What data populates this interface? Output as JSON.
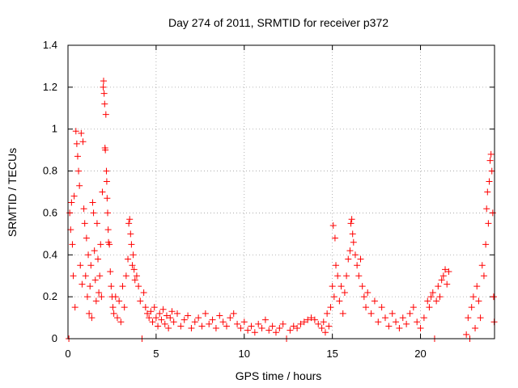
{
  "chart_data": {
    "type": "scatter",
    "title": "Day 274 of 2011, SRMTID for receiver p372",
    "xlabel": "GPS time / hours",
    "ylabel": "SRMTID / TECUs",
    "xlim": [
      0,
      24.2
    ],
    "ylim": [
      0,
      1.4
    ],
    "x_ticks": [
      0,
      5,
      10,
      15,
      20
    ],
    "x_tick_labels": [
      "0",
      "5",
      "10",
      "15",
      "20"
    ],
    "y_ticks": [
      0,
      0.2,
      0.4,
      0.6,
      0.8,
      1,
      1.2,
      1.4
    ],
    "y_tick_labels": [
      "0",
      "0.2",
      "0.4",
      "0.6",
      "0.8",
      "1",
      "1.2",
      "1.4"
    ],
    "grid": true,
    "marker": "+",
    "color": "#ff0000",
    "series": [
      {
        "name": "SRMTID",
        "points": [
          [
            0.05,
            0.0
          ],
          [
            0.1,
            0.6
          ],
          [
            0.15,
            0.52
          ],
          [
            0.2,
            0.65
          ],
          [
            0.25,
            0.45
          ],
          [
            0.3,
            0.3
          ],
          [
            0.35,
            0.68
          ],
          [
            0.4,
            0.15
          ],
          [
            0.45,
            0.99
          ],
          [
            0.5,
            0.93
          ],
          [
            0.55,
            0.87
          ],
          [
            0.6,
            0.8
          ],
          [
            0.65,
            0.73
          ],
          [
            0.7,
            0.35
          ],
          [
            0.75,
            0.98
          ],
          [
            0.8,
            0.26
          ],
          [
            0.85,
            0.94
          ],
          [
            0.9,
            0.62
          ],
          [
            0.95,
            0.55
          ],
          [
            1.0,
            0.3
          ],
          [
            1.05,
            0.48
          ],
          [
            1.1,
            0.2
          ],
          [
            1.15,
            0.4
          ],
          [
            1.2,
            0.12
          ],
          [
            1.25,
            0.25
          ],
          [
            1.3,
            0.35
          ],
          [
            1.35,
            0.1
          ],
          [
            1.4,
            0.65
          ],
          [
            1.45,
            0.6
          ],
          [
            1.5,
            0.42
          ],
          [
            1.55,
            0.28
          ],
          [
            1.6,
            0.18
          ],
          [
            1.65,
            0.55
          ],
          [
            1.7,
            0.38
          ],
          [
            1.75,
            0.22
          ],
          [
            1.8,
            0.3
          ],
          [
            1.85,
            0.45
          ],
          [
            1.9,
            0.2
          ],
          [
            1.95,
            0.7
          ],
          [
            2.0,
            1.2
          ],
          [
            2.02,
            1.23
          ],
          [
            2.05,
            1.17
          ],
          [
            2.08,
            1.12
          ],
          [
            2.1,
            0.91
          ],
          [
            2.12,
            0.9
          ],
          [
            2.15,
            1.07
          ],
          [
            2.18,
            0.8
          ],
          [
            2.2,
            0.75
          ],
          [
            2.22,
            0.67
          ],
          [
            2.25,
            0.6
          ],
          [
            2.28,
            0.52
          ],
          [
            2.3,
            0.46
          ],
          [
            2.35,
            0.45
          ],
          [
            2.4,
            0.32
          ],
          [
            2.45,
            0.25
          ],
          [
            2.5,
            0.2
          ],
          [
            2.55,
            0.15
          ],
          [
            2.6,
            0.12
          ],
          [
            2.7,
            0.2
          ],
          [
            2.8,
            0.1
          ],
          [
            2.9,
            0.18
          ],
          [
            3.0,
            0.08
          ],
          [
            3.1,
            0.25
          ],
          [
            3.2,
            0.15
          ],
          [
            3.3,
            0.3
          ],
          [
            3.4,
            0.38
          ],
          [
            3.45,
            0.55
          ],
          [
            3.5,
            0.57
          ],
          [
            3.55,
            0.5
          ],
          [
            3.6,
            0.45
          ],
          [
            3.65,
            0.35
          ],
          [
            3.7,
            0.4
          ],
          [
            3.75,
            0.33
          ],
          [
            3.8,
            0.28
          ],
          [
            3.9,
            0.3
          ],
          [
            4.0,
            0.25
          ],
          [
            4.1,
            0.18
          ],
          [
            4.2,
            0.0
          ],
          [
            4.3,
            0.22
          ],
          [
            4.4,
            0.15
          ],
          [
            4.5,
            0.12
          ],
          [
            4.6,
            0.1
          ],
          [
            4.7,
            0.13
          ],
          [
            4.8,
            0.08
          ],
          [
            4.9,
            0.15
          ],
          [
            5.0,
            0.1
          ],
          [
            5.1,
            0.06
          ],
          [
            5.2,
            0.12
          ],
          [
            5.3,
            0.09
          ],
          [
            5.4,
            0.14
          ],
          [
            5.5,
            0.07
          ],
          [
            5.6,
            0.11
          ],
          [
            5.7,
            0.05
          ],
          [
            5.8,
            0.1
          ],
          [
            5.9,
            0.13
          ],
          [
            6.0,
            0.08
          ],
          [
            6.2,
            0.12
          ],
          [
            6.4,
            0.06
          ],
          [
            6.6,
            0.09
          ],
          [
            6.8,
            0.11
          ],
          [
            7.0,
            0.05
          ],
          [
            7.2,
            0.08
          ],
          [
            7.4,
            0.1
          ],
          [
            7.6,
            0.06
          ],
          [
            7.8,
            0.12
          ],
          [
            8.0,
            0.07
          ],
          [
            8.2,
            0.09
          ],
          [
            8.4,
            0.05
          ],
          [
            8.6,
            0.11
          ],
          [
            8.8,
            0.08
          ],
          [
            9.0,
            0.06
          ],
          [
            9.2,
            0.1
          ],
          [
            9.4,
            0.12
          ],
          [
            9.6,
            0.07
          ],
          [
            9.8,
            0.05
          ],
          [
            10.0,
            0.08
          ],
          [
            10.2,
            0.04
          ],
          [
            10.4,
            0.06
          ],
          [
            10.6,
            0.03
          ],
          [
            10.8,
            0.07
          ],
          [
            11.0,
            0.05
          ],
          [
            11.2,
            0.09
          ],
          [
            11.4,
            0.04
          ],
          [
            11.6,
            0.06
          ],
          [
            11.8,
            0.03
          ],
          [
            12.0,
            0.05
          ],
          [
            12.2,
            0.07
          ],
          [
            12.4,
            0.0
          ],
          [
            12.6,
            0.04
          ],
          [
            12.8,
            0.06
          ],
          [
            13.0,
            0.05
          ],
          [
            13.2,
            0.07
          ],
          [
            13.4,
            0.08
          ],
          [
            13.6,
            0.09
          ],
          [
            13.8,
            0.1
          ],
          [
            14.0,
            0.09
          ],
          [
            14.2,
            0.07
          ],
          [
            14.4,
            0.05
          ],
          [
            14.5,
            0.08
          ],
          [
            14.6,
            0.03
          ],
          [
            14.7,
            0.12
          ],
          [
            14.8,
            0.06
          ],
          [
            14.9,
            0.15
          ],
          [
            15.0,
            0.25
          ],
          [
            15.05,
            0.54
          ],
          [
            15.1,
            0.2
          ],
          [
            15.15,
            0.48
          ],
          [
            15.2,
            0.35
          ],
          [
            15.3,
            0.3
          ],
          [
            15.4,
            0.18
          ],
          [
            15.5,
            0.25
          ],
          [
            15.6,
            0.12
          ],
          [
            15.7,
            0.22
          ],
          [
            15.8,
            0.3
          ],
          [
            15.9,
            0.38
          ],
          [
            16.0,
            0.42
          ],
          [
            16.05,
            0.55
          ],
          [
            16.1,
            0.57
          ],
          [
            16.15,
            0.5
          ],
          [
            16.2,
            0.46
          ],
          [
            16.3,
            0.4
          ],
          [
            16.4,
            0.35
          ],
          [
            16.5,
            0.3
          ],
          [
            16.6,
            0.38
          ],
          [
            16.7,
            0.25
          ],
          [
            16.8,
            0.2
          ],
          [
            16.9,
            0.15
          ],
          [
            17.0,
            0.22
          ],
          [
            17.2,
            0.12
          ],
          [
            17.4,
            0.18
          ],
          [
            17.6,
            0.08
          ],
          [
            17.8,
            0.15
          ],
          [
            18.0,
            0.1
          ],
          [
            18.2,
            0.06
          ],
          [
            18.4,
            0.12
          ],
          [
            18.6,
            0.08
          ],
          [
            18.8,
            0.05
          ],
          [
            19.0,
            0.1
          ],
          [
            19.2,
            0.07
          ],
          [
            19.4,
            0.12
          ],
          [
            19.6,
            0.15
          ],
          [
            19.8,
            0.08
          ],
          [
            20.0,
            0.05
          ],
          [
            20.2,
            0.1
          ],
          [
            20.4,
            0.18
          ],
          [
            20.5,
            0.15
          ],
          [
            20.6,
            0.2
          ],
          [
            20.7,
            0.22
          ],
          [
            20.8,
            0.0
          ],
          [
            20.9,
            0.18
          ],
          [
            21.0,
            0.25
          ],
          [
            21.1,
            0.2
          ],
          [
            21.2,
            0.28
          ],
          [
            21.3,
            0.3
          ],
          [
            21.4,
            0.33
          ],
          [
            21.5,
            0.26
          ],
          [
            21.6,
            0.32
          ],
          [
            22.6,
            0.02
          ],
          [
            22.7,
            0.1
          ],
          [
            22.8,
            0.0
          ],
          [
            22.9,
            0.15
          ],
          [
            23.0,
            0.2
          ],
          [
            23.1,
            0.05
          ],
          [
            23.2,
            0.25
          ],
          [
            23.3,
            0.18
          ],
          [
            23.4,
            0.1
          ],
          [
            23.5,
            0.35
          ],
          [
            23.6,
            0.3
          ],
          [
            23.7,
            0.45
          ],
          [
            23.75,
            0.62
          ],
          [
            23.8,
            0.7
          ],
          [
            23.85,
            0.55
          ],
          [
            23.9,
            0.75
          ],
          [
            23.95,
            0.85
          ],
          [
            24.0,
            0.88
          ],
          [
            24.05,
            0.8
          ],
          [
            24.1,
            0.6
          ],
          [
            24.15,
            0.2
          ],
          [
            24.18,
            0.08
          ]
        ]
      }
    ]
  }
}
